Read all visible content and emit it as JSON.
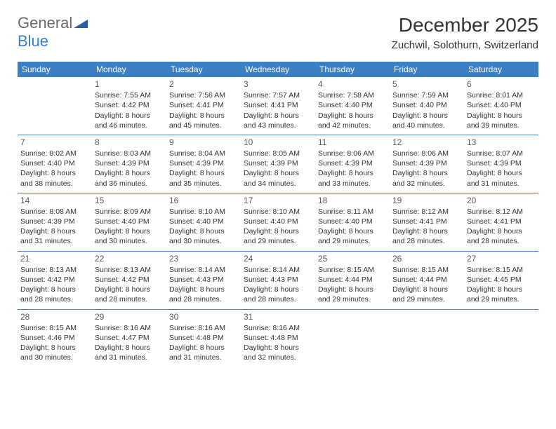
{
  "brand": {
    "text1": "General",
    "text2": "Blue",
    "color_general": "#6b6b6b",
    "color_blue": "#3b7fc4",
    "logo_icon_fill": "#2b5fa0"
  },
  "title": "December 2025",
  "location": "Zuchwil, Solothurn, Switzerland",
  "header_bg": "#3b7fc4",
  "header_fg": "#ffffff",
  "border_color": "#3b7fc4",
  "day_headers": [
    "Sunday",
    "Monday",
    "Tuesday",
    "Wednesday",
    "Thursday",
    "Friday",
    "Saturday"
  ],
  "weeks": [
    [
      null,
      {
        "n": "1",
        "sr": "Sunrise: 7:55 AM",
        "ss": "Sunset: 4:42 PM",
        "d1": "Daylight: 8 hours",
        "d2": "and 46 minutes."
      },
      {
        "n": "2",
        "sr": "Sunrise: 7:56 AM",
        "ss": "Sunset: 4:41 PM",
        "d1": "Daylight: 8 hours",
        "d2": "and 45 minutes."
      },
      {
        "n": "3",
        "sr": "Sunrise: 7:57 AM",
        "ss": "Sunset: 4:41 PM",
        "d1": "Daylight: 8 hours",
        "d2": "and 43 minutes."
      },
      {
        "n": "4",
        "sr": "Sunrise: 7:58 AM",
        "ss": "Sunset: 4:40 PM",
        "d1": "Daylight: 8 hours",
        "d2": "and 42 minutes."
      },
      {
        "n": "5",
        "sr": "Sunrise: 7:59 AM",
        "ss": "Sunset: 4:40 PM",
        "d1": "Daylight: 8 hours",
        "d2": "and 40 minutes."
      },
      {
        "n": "6",
        "sr": "Sunrise: 8:01 AM",
        "ss": "Sunset: 4:40 PM",
        "d1": "Daylight: 8 hours",
        "d2": "and 39 minutes."
      }
    ],
    [
      {
        "n": "7",
        "sr": "Sunrise: 8:02 AM",
        "ss": "Sunset: 4:40 PM",
        "d1": "Daylight: 8 hours",
        "d2": "and 38 minutes."
      },
      {
        "n": "8",
        "sr": "Sunrise: 8:03 AM",
        "ss": "Sunset: 4:39 PM",
        "d1": "Daylight: 8 hours",
        "d2": "and 36 minutes."
      },
      {
        "n": "9",
        "sr": "Sunrise: 8:04 AM",
        "ss": "Sunset: 4:39 PM",
        "d1": "Daylight: 8 hours",
        "d2": "and 35 minutes."
      },
      {
        "n": "10",
        "sr": "Sunrise: 8:05 AM",
        "ss": "Sunset: 4:39 PM",
        "d1": "Daylight: 8 hours",
        "d2": "and 34 minutes."
      },
      {
        "n": "11",
        "sr": "Sunrise: 8:06 AM",
        "ss": "Sunset: 4:39 PM",
        "d1": "Daylight: 8 hours",
        "d2": "and 33 minutes."
      },
      {
        "n": "12",
        "sr": "Sunrise: 8:06 AM",
        "ss": "Sunset: 4:39 PM",
        "d1": "Daylight: 8 hours",
        "d2": "and 32 minutes."
      },
      {
        "n": "13",
        "sr": "Sunrise: 8:07 AM",
        "ss": "Sunset: 4:39 PM",
        "d1": "Daylight: 8 hours",
        "d2": "and 31 minutes."
      }
    ],
    [
      {
        "n": "14",
        "sr": "Sunrise: 8:08 AM",
        "ss": "Sunset: 4:39 PM",
        "d1": "Daylight: 8 hours",
        "d2": "and 31 minutes."
      },
      {
        "n": "15",
        "sr": "Sunrise: 8:09 AM",
        "ss": "Sunset: 4:40 PM",
        "d1": "Daylight: 8 hours",
        "d2": "and 30 minutes."
      },
      {
        "n": "16",
        "sr": "Sunrise: 8:10 AM",
        "ss": "Sunset: 4:40 PM",
        "d1": "Daylight: 8 hours",
        "d2": "and 30 minutes."
      },
      {
        "n": "17",
        "sr": "Sunrise: 8:10 AM",
        "ss": "Sunset: 4:40 PM",
        "d1": "Daylight: 8 hours",
        "d2": "and 29 minutes."
      },
      {
        "n": "18",
        "sr": "Sunrise: 8:11 AM",
        "ss": "Sunset: 4:40 PM",
        "d1": "Daylight: 8 hours",
        "d2": "and 29 minutes."
      },
      {
        "n": "19",
        "sr": "Sunrise: 8:12 AM",
        "ss": "Sunset: 4:41 PM",
        "d1": "Daylight: 8 hours",
        "d2": "and 28 minutes."
      },
      {
        "n": "20",
        "sr": "Sunrise: 8:12 AM",
        "ss": "Sunset: 4:41 PM",
        "d1": "Daylight: 8 hours",
        "d2": "and 28 minutes."
      }
    ],
    [
      {
        "n": "21",
        "sr": "Sunrise: 8:13 AM",
        "ss": "Sunset: 4:42 PM",
        "d1": "Daylight: 8 hours",
        "d2": "and 28 minutes."
      },
      {
        "n": "22",
        "sr": "Sunrise: 8:13 AM",
        "ss": "Sunset: 4:42 PM",
        "d1": "Daylight: 8 hours",
        "d2": "and 28 minutes."
      },
      {
        "n": "23",
        "sr": "Sunrise: 8:14 AM",
        "ss": "Sunset: 4:43 PM",
        "d1": "Daylight: 8 hours",
        "d2": "and 28 minutes."
      },
      {
        "n": "24",
        "sr": "Sunrise: 8:14 AM",
        "ss": "Sunset: 4:43 PM",
        "d1": "Daylight: 8 hours",
        "d2": "and 28 minutes."
      },
      {
        "n": "25",
        "sr": "Sunrise: 8:15 AM",
        "ss": "Sunset: 4:44 PM",
        "d1": "Daylight: 8 hours",
        "d2": "and 29 minutes."
      },
      {
        "n": "26",
        "sr": "Sunrise: 8:15 AM",
        "ss": "Sunset: 4:44 PM",
        "d1": "Daylight: 8 hours",
        "d2": "and 29 minutes."
      },
      {
        "n": "27",
        "sr": "Sunrise: 8:15 AM",
        "ss": "Sunset: 4:45 PM",
        "d1": "Daylight: 8 hours",
        "d2": "and 29 minutes."
      }
    ],
    [
      {
        "n": "28",
        "sr": "Sunrise: 8:15 AM",
        "ss": "Sunset: 4:46 PM",
        "d1": "Daylight: 8 hours",
        "d2": "and 30 minutes."
      },
      {
        "n": "29",
        "sr": "Sunrise: 8:16 AM",
        "ss": "Sunset: 4:47 PM",
        "d1": "Daylight: 8 hours",
        "d2": "and 31 minutes."
      },
      {
        "n": "30",
        "sr": "Sunrise: 8:16 AM",
        "ss": "Sunset: 4:48 PM",
        "d1": "Daylight: 8 hours",
        "d2": "and 31 minutes."
      },
      {
        "n": "31",
        "sr": "Sunrise: 8:16 AM",
        "ss": "Sunset: 4:48 PM",
        "d1": "Daylight: 8 hours",
        "d2": "and 32 minutes."
      },
      null,
      null,
      null
    ]
  ]
}
